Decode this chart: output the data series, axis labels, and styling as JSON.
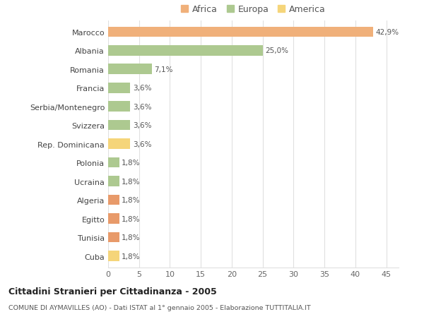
{
  "categories": [
    "Cuba",
    "Tunisia",
    "Egitto",
    "Algeria",
    "Ucraina",
    "Polonia",
    "Rep. Dominicana",
    "Svizzera",
    "Serbia/Montenegro",
    "Francia",
    "Romania",
    "Albania",
    "Marocco"
  ],
  "values": [
    1.8,
    1.8,
    1.8,
    1.8,
    1.8,
    1.8,
    3.6,
    3.6,
    3.6,
    3.6,
    7.1,
    25.0,
    42.9
  ],
  "labels": [
    "1,8%",
    "1,8%",
    "1,8%",
    "1,8%",
    "1,8%",
    "1,8%",
    "3,6%",
    "3,6%",
    "3,6%",
    "3,6%",
    "7,1%",
    "25,0%",
    "42,9%"
  ],
  "colors": [
    "#f5d57a",
    "#e89a6a",
    "#e89a6a",
    "#e89a6a",
    "#adc990",
    "#adc990",
    "#f5d57a",
    "#adc990",
    "#adc990",
    "#adc990",
    "#adc990",
    "#adc990",
    "#f0b07a"
  ],
  "legend_labels": [
    "Africa",
    "Europa",
    "America"
  ],
  "legend_colors": [
    "#f0b07a",
    "#adc990",
    "#f5d57a"
  ],
  "title": "Cittadini Stranieri per Cittadinanza - 2005",
  "subtitle": "COMUNE DI AYMAVILLES (AO) - Dati ISTAT al 1° gennaio 2005 - Elaborazione TUTTITALIA.IT",
  "xlim": [
    0,
    47
  ],
  "xticks": [
    0,
    5,
    10,
    15,
    20,
    25,
    30,
    35,
    40,
    45
  ],
  "background_color": "#ffffff",
  "grid_color": "#e0e0e0",
  "bar_height": 0.55
}
